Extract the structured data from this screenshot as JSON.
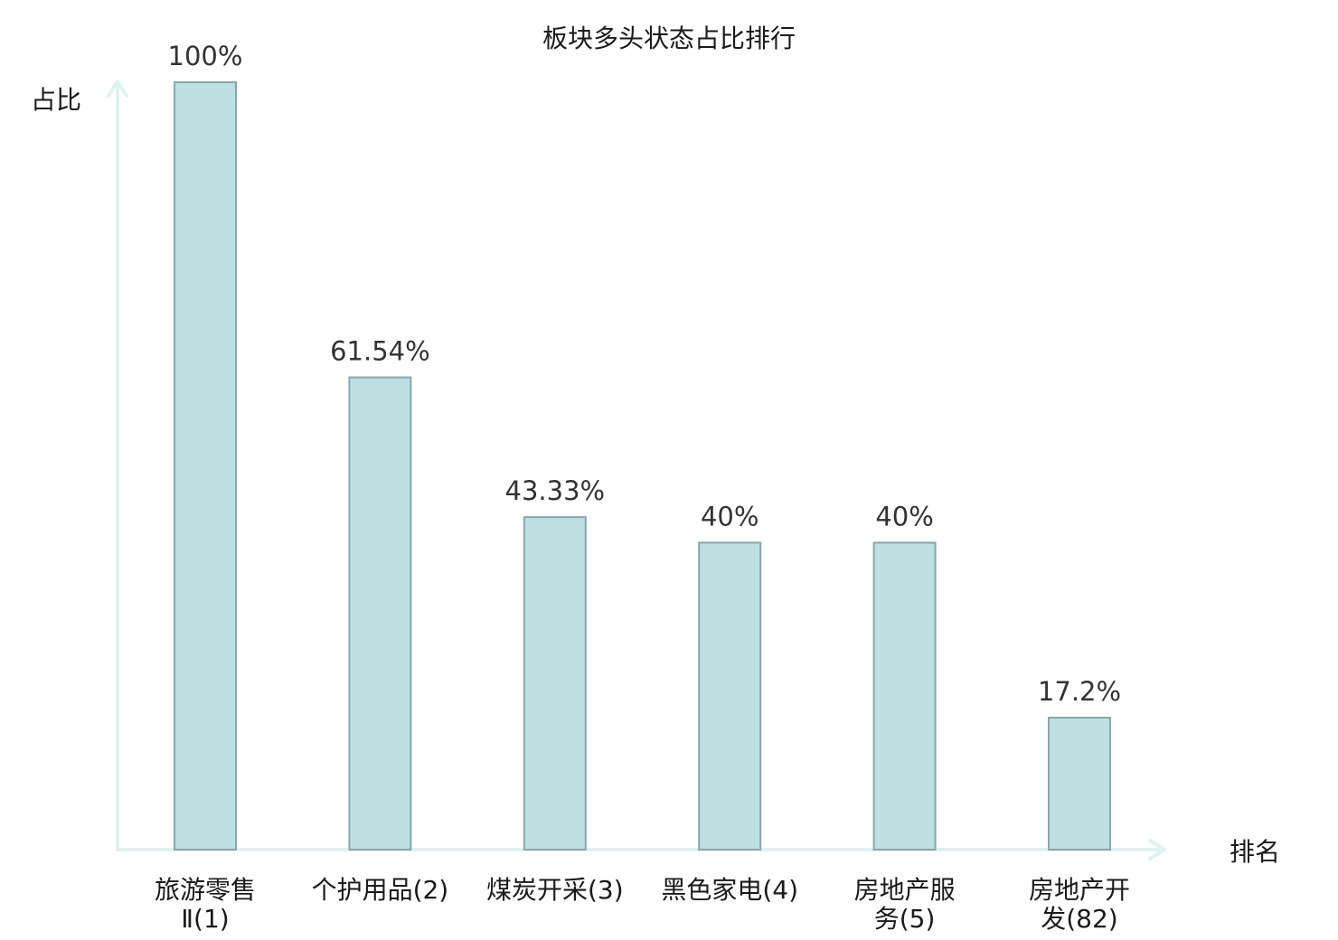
{
  "chart_data": {
    "type": "bar",
    "title": "板块多头状态占比排行",
    "ylabel": "占比",
    "xlabel": "排名",
    "ylim": [
      0,
      100
    ],
    "grid": false,
    "categories": [
      [
        "旅游零售",
        "Ⅱ(1)"
      ],
      [
        "个护用品(2)"
      ],
      [
        "煤炭开采(3)"
      ],
      [
        "黑色家电(4)"
      ],
      [
        "房地产服",
        "务(5)"
      ],
      [
        "房地产开",
        "发(82)"
      ]
    ],
    "values": [
      100,
      61.54,
      43.33,
      40,
      40,
      17.2
    ],
    "value_labels": [
      "100%",
      "61.54%",
      "43.33%",
      "40%",
      "40%",
      "17.2%"
    ],
    "highlight_index": 5,
    "colors": {
      "bar_fill": "#bde0e3",
      "bar_stroke": "#8aa6a8",
      "axis": "#dff2ef",
      "highlight_text": "#e00000",
      "text": "#1a1a1a"
    }
  }
}
